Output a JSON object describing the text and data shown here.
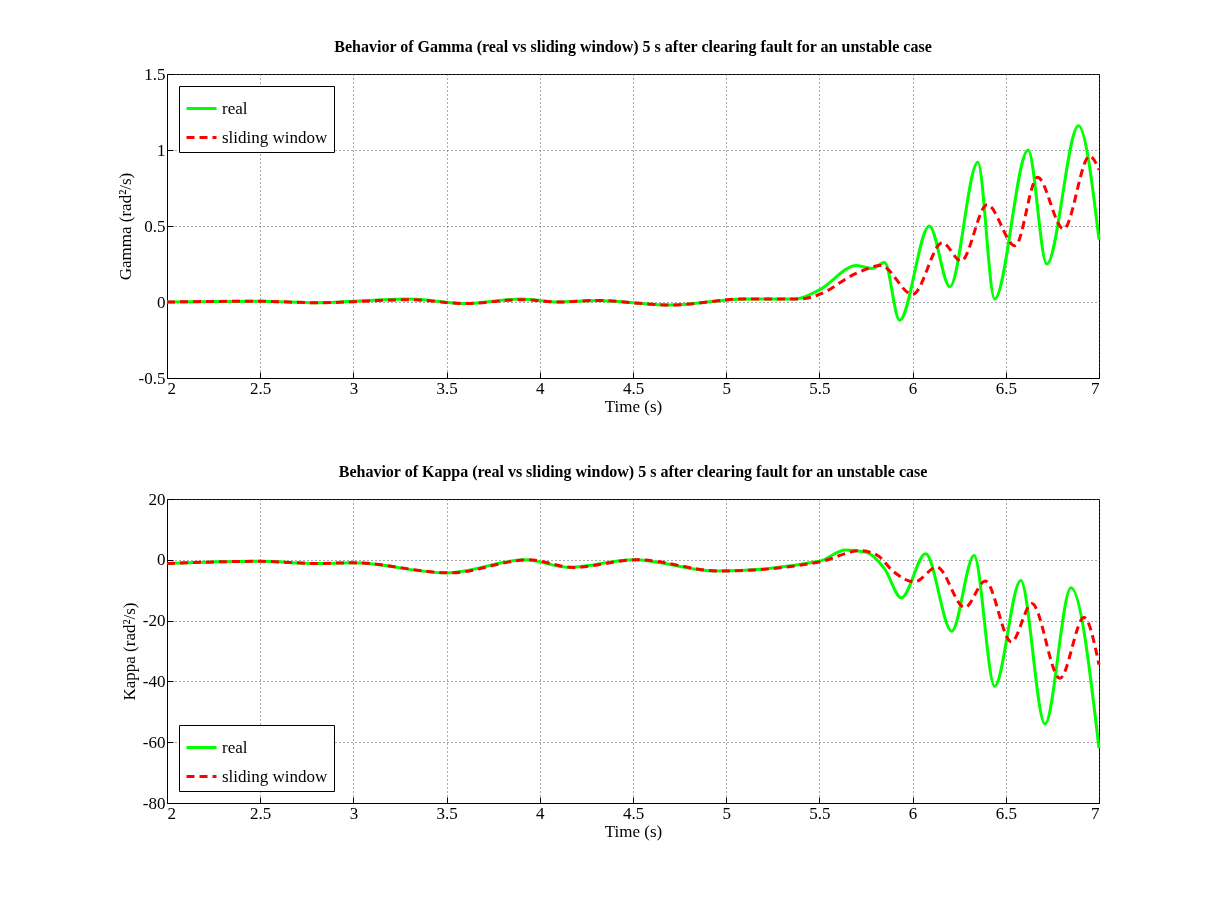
{
  "chart_data": [
    {
      "type": "line",
      "title": "Behavior of Gamma (real vs sliding window) 5 s after clearing fault for an unstable case",
      "xlabel": "Time (s)",
      "ylabel": "Gamma (rad²/s)",
      "xlim": [
        2,
        7
      ],
      "ylim": [
        -0.5,
        1.5
      ],
      "xticks": [
        2,
        2.5,
        3,
        3.5,
        4,
        4.5,
        5,
        5.5,
        6,
        6.5,
        7
      ],
      "yticks": [
        -0.5,
        0,
        0.5,
        1,
        1.5
      ],
      "grid": true,
      "legend": "top left",
      "series": [
        {
          "name": "real",
          "color": "#00ff00",
          "line_style": "solid",
          "x": [
            2,
            2.5,
            2.8,
            3.3,
            3.6,
            3.9,
            4.1,
            4.3,
            4.7,
            5.1,
            5.37,
            5.5,
            5.7,
            5.78,
            5.85,
            5.93,
            6.09,
            6.2,
            6.35,
            6.44,
            6.62,
            6.72,
            6.89,
            7
          ],
          "values": [
            0,
            0.005,
            -0.005,
            0.02,
            -0.01,
            0.02,
            0,
            0.01,
            -0.02,
            0.02,
            0.02,
            0.08,
            0.24,
            0.22,
            0.26,
            -0.12,
            0.5,
            0.1,
            0.92,
            0.02,
            1.0,
            0.25,
            1.16,
            0.41
          ]
        },
        {
          "name": "sliding window",
          "color": "#ff0000",
          "line_style": "dashed",
          "x": [
            2,
            2.5,
            2.8,
            3.3,
            3.6,
            3.9,
            4.1,
            4.3,
            4.7,
            5.1,
            5.4,
            5.5,
            5.7,
            5.83,
            6.0,
            6.16,
            6.26,
            6.4,
            6.55,
            6.67,
            6.81,
            6.95,
            7
          ],
          "values": [
            0,
            0.005,
            -0.005,
            0.015,
            -0.01,
            0.015,
            0,
            0.01,
            -0.02,
            0.02,
            0.02,
            0.05,
            0.19,
            0.24,
            0.05,
            0.39,
            0.27,
            0.64,
            0.37,
            0.82,
            0.48,
            0.96,
            0.87
          ]
        }
      ]
    },
    {
      "type": "line",
      "title": "Behavior of Kappa (real vs sliding window) 5 s after clearing fault for an unstable case",
      "xlabel": "Time (s)",
      "ylabel": "Kappa (rad²/s)",
      "xlim": [
        2,
        7
      ],
      "ylim": [
        -80,
        20
      ],
      "xticks": [
        2,
        2.5,
        3,
        3.5,
        4,
        4.5,
        5,
        5.5,
        6,
        6.5,
        7
      ],
      "yticks": [
        -80,
        -60,
        -40,
        -20,
        0,
        20
      ],
      "grid": true,
      "legend": "bottom left",
      "series": [
        {
          "name": "real",
          "color": "#00ff00",
          "line_style": "solid",
          "x": [
            2,
            2.5,
            2.8,
            3.0,
            3.5,
            3.92,
            4.16,
            4.5,
            4.95,
            5.5,
            5.64,
            5.75,
            5.85,
            5.94,
            6.07,
            6.21,
            6.33,
            6.44,
            6.58,
            6.71,
            6.85,
            7
          ],
          "values": [
            -1.2,
            -0.5,
            -1.2,
            -1,
            -4.3,
            0,
            -2.5,
            0,
            -3.7,
            -0.5,
            3.2,
            2.5,
            -3,
            -12.5,
            2,
            -23.5,
            1.4,
            -41.6,
            -6.8,
            -54,
            -9.2,
            -62
          ]
        },
        {
          "name": "sliding window",
          "color": "#ff0000",
          "line_style": "dashed",
          "x": [
            2,
            2.5,
            2.8,
            3.0,
            3.52,
            3.94,
            4.18,
            4.52,
            4.97,
            5.5,
            5.72,
            5.81,
            5.9,
            6.01,
            6.13,
            6.28,
            6.39,
            6.53,
            6.64,
            6.79,
            6.92,
            7
          ],
          "values": [
            -1.2,
            -0.5,
            -1.2,
            -1,
            -4.3,
            0,
            -2.5,
            0,
            -3.7,
            -0.7,
            3,
            1.5,
            -4,
            -7.3,
            -2.4,
            -15.7,
            -7,
            -27,
            -14.4,
            -39,
            -19,
            -34.5
          ]
        }
      ]
    }
  ]
}
